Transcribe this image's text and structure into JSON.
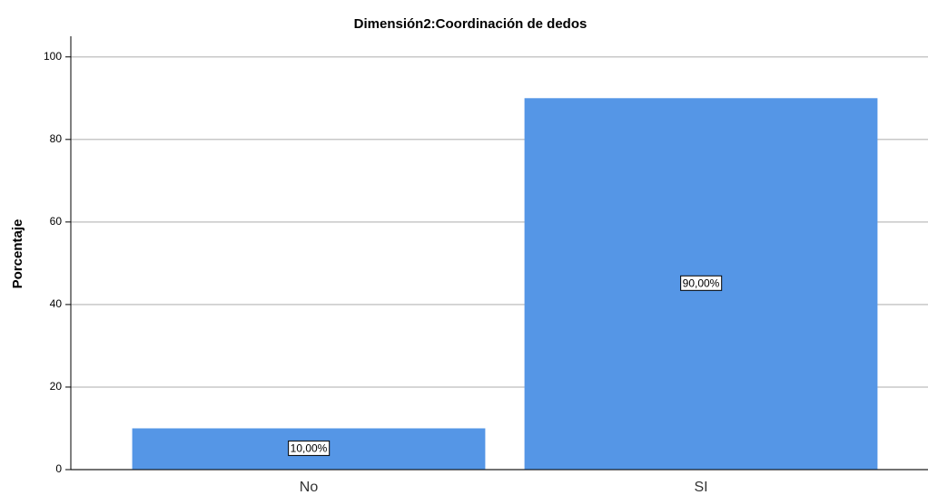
{
  "chart_data": {
    "type": "bar",
    "title": "Dimensión2:Coordinación de dedos",
    "ylabel": "Porcentaje",
    "categories": [
      "No",
      "SI"
    ],
    "values": [
      10,
      90
    ],
    "value_labels": [
      "10,00%",
      "90,00%"
    ],
    "color": "#5596e6",
    "ylim": [
      0,
      105
    ],
    "yticks": [
      0,
      20,
      40,
      60,
      80,
      100
    ],
    "grid": true
  }
}
